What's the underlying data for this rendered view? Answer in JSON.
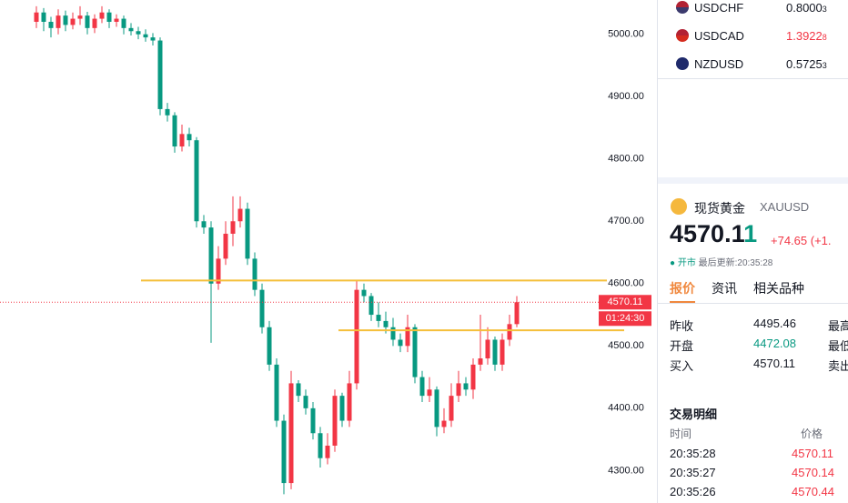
{
  "chart_data": {
    "type": "candlestick",
    "open": [
      5020,
      5035,
      5020,
      5010,
      5030,
      5015,
      5025,
      5030,
      5010,
      5025,
      5035,
      5020,
      5025,
      5010,
      5005,
      5000,
      4995,
      4990,
      4880,
      4870,
      4820,
      4840,
      4830,
      4700,
      4690,
      4600,
      4640,
      4680,
      4700,
      4720,
      4640,
      4590,
      4530,
      4470,
      4380,
      4280,
      4440,
      4420,
      4400,
      4360,
      4320,
      4340,
      4420,
      4380,
      4440,
      4590,
      4580,
      4550,
      4540,
      4530,
      4510,
      4500,
      4530,
      4450,
      4420,
      4430,
      4370,
      4380,
      4420,
      4440,
      4430,
      4470,
      4480,
      4510,
      4470,
      4510,
      4535
    ],
    "high": [
      5045,
      5042,
      5028,
      5040,
      5038,
      5035,
      5045,
      5036,
      5032,
      5045,
      5040,
      5032,
      5030,
      5018,
      5012,
      5008,
      5002,
      4995,
      4890,
      4875,
      4855,
      4850,
      4835,
      4710,
      4700,
      4660,
      4700,
      4740,
      4740,
      4730,
      4650,
      4600,
      4540,
      4480,
      4390,
      4460,
      4445,
      4430,
      4410,
      4370,
      4360,
      4430,
      4425,
      4460,
      4605,
      4600,
      4585,
      4570,
      4555,
      4545,
      4520,
      4550,
      4535,
      4460,
      4450,
      4435,
      4400,
      4440,
      4460,
      4450,
      4480,
      4550,
      4530,
      4515,
      4520,
      4550,
      4580
    ],
    "low": [
      5010,
      5005,
      4995,
      5000,
      5005,
      5008,
      5015,
      5000,
      5002,
      5018,
      5010,
      5012,
      5000,
      4998,
      4992,
      4988,
      4982,
      4870,
      4860,
      4810,
      4812,
      4820,
      4690,
      4680,
      4505,
      4590,
      4630,
      4660,
      4690,
      4630,
      4580,
      4520,
      4460,
      4370,
      4262,
      4270,
      4410,
      4390,
      4350,
      4305,
      4310,
      4330,
      4370,
      4370,
      4430,
      4570,
      4540,
      4530,
      4520,
      4500,
      4490,
      4490,
      4440,
      4410,
      4410,
      4355,
      4360,
      4370,
      4410,
      4420,
      4415,
      4460,
      4470,
      4460,
      4460,
      4500,
      4530
    ],
    "close": [
      5035,
      5020,
      5010,
      5030,
      5015,
      5025,
      5030,
      5010,
      5025,
      5035,
      5020,
      5025,
      5010,
      5005,
      5000,
      4995,
      4990,
      4880,
      4870,
      4820,
      4840,
      4830,
      4700,
      4690,
      4600,
      4640,
      4680,
      4700,
      4720,
      4640,
      4590,
      4530,
      4470,
      4380,
      4280,
      4440,
      4420,
      4400,
      4360,
      4320,
      4340,
      4420,
      4380,
      4440,
      4590,
      4580,
      4550,
      4540,
      4530,
      4510,
      4500,
      4530,
      4450,
      4420,
      4430,
      4370,
      4380,
      4420,
      4440,
      4430,
      4470,
      4480,
      4510,
      4470,
      4510,
      4535,
      4570.11
    ],
    "up_color": "#f23645",
    "down_color": "#089981",
    "ylim": [
      4248,
      5055
    ],
    "yticks": [
      {
        "value": 4300,
        "label": "4300.00"
      },
      {
        "value": 4400,
        "label": "4400.00"
      },
      {
        "value": 4500,
        "label": "4500.00"
      },
      {
        "value": 4600,
        "label": "4600.00"
      },
      {
        "value": 4700,
        "label": "4700.00"
      },
      {
        "value": 4800,
        "label": "4800.00"
      },
      {
        "value": 4900,
        "label": "4900.00"
      },
      {
        "value": 5000,
        "label": "5000.00"
      }
    ],
    "hlines": [
      4605,
      4525
    ],
    "hline_color": "#f5bf3a",
    "last_price": 4570.11,
    "countdown": "01:24:30"
  },
  "watchlist": [
    {
      "symbol": "USDCHF",
      "price": "0.8000",
      "tail": "3"
    },
    {
      "symbol": "USDCAD",
      "price": "1.3922",
      "tail": "8"
    },
    {
      "symbol": "NZDUSD",
      "price": "0.5725",
      "tail": "3"
    }
  ],
  "quote": {
    "name": "现货黄金",
    "symbol": "XAUUSD",
    "price": "4570.1",
    "price_tail": "1",
    "change": "+74.65",
    "change_pct": "(+1.",
    "status": "开市",
    "updated": "最后更新:20:35:28",
    "tabs": [
      "报价",
      "资讯",
      "相关品种"
    ],
    "rows": [
      [
        "昨收",
        "4495.46",
        "最高"
      ],
      [
        "开盘",
        "4472.08",
        "最低"
      ],
      [
        "买入",
        "4570.11",
        "卖出"
      ]
    ]
  },
  "trades": {
    "title": "交易明细",
    "headers": [
      "时间",
      "价格"
    ],
    "rows": [
      [
        "20:35:28",
        "4570.11"
      ],
      [
        "20:35:27",
        "4570.14"
      ],
      [
        "20:35:26",
        "4570.44"
      ]
    ]
  }
}
